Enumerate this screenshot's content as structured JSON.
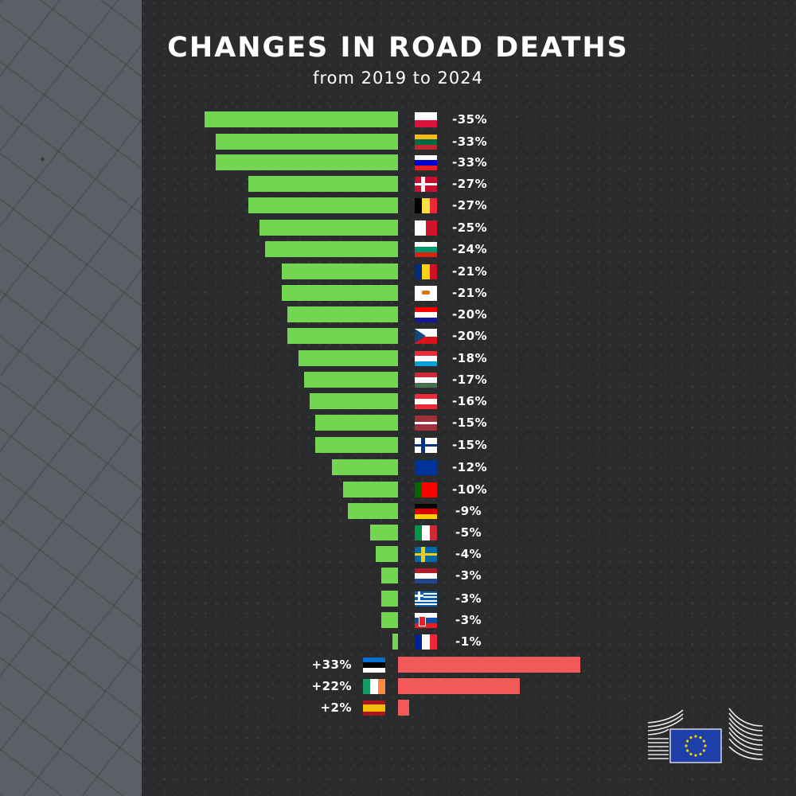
{
  "header": {
    "title": "CHANGES IN ROAD DEATHS",
    "subtitle": "from 2019 to 2024"
  },
  "colors": {
    "decrease": "#73d651",
    "increase": "#f25a5a",
    "background": "#2a2b2d"
  },
  "rows": [
    {
      "country": "Poland",
      "label": "-35%",
      "value": -35
    },
    {
      "country": "Lithuania",
      "label": "-33%",
      "value": -33
    },
    {
      "country": "Slovenia",
      "label": "-33%",
      "value": -33
    },
    {
      "country": "Denmark",
      "label": "-27%",
      "value": -27
    },
    {
      "country": "Belgium",
      "label": "-27%",
      "value": -27
    },
    {
      "country": "Malta",
      "label": "-25%",
      "value": -25
    },
    {
      "country": "Bulgaria",
      "label": "-24%",
      "value": -24
    },
    {
      "country": "Romania",
      "label": "-21%",
      "value": -21
    },
    {
      "country": "Cyprus",
      "label": "-21%",
      "value": -21
    },
    {
      "country": "Croatia",
      "label": "-20%",
      "value": -20
    },
    {
      "country": "Czechia",
      "label": "-20%",
      "value": -20
    },
    {
      "country": "Luxembourg",
      "label": "-18%",
      "value": -18
    },
    {
      "country": "Hungary",
      "label": "-17%",
      "value": -17
    },
    {
      "country": "Austria",
      "label": "-16%",
      "value": -16
    },
    {
      "country": "Latvia",
      "label": "-15%",
      "value": -15
    },
    {
      "country": "Finland",
      "label": "-15%",
      "value": -15
    },
    {
      "country": "EU",
      "label": "-12%",
      "value": -12
    },
    {
      "country": "Portugal",
      "label": "-10%",
      "value": -10
    },
    {
      "country": "Germany",
      "label": "-9%",
      "value": -9
    },
    {
      "country": "Italy",
      "label": "-5%",
      "value": -5
    },
    {
      "country": "Sweden",
      "label": "-4%",
      "value": -4
    },
    {
      "country": "Netherlands",
      "label": "-3%",
      "value": -3
    },
    {
      "country": "Greece",
      "label": "-3%",
      "value": -3
    },
    {
      "country": "Slovakia",
      "label": "-3%",
      "value": -3
    },
    {
      "country": "France",
      "label": "-1%",
      "value": -1
    },
    {
      "country": "Estonia",
      "label": "+33%",
      "value": 33
    },
    {
      "country": "Ireland",
      "label": "+22%",
      "value": 22
    },
    {
      "country": "Spain",
      "label": "+2%",
      "value": 2
    }
  ],
  "chart_data": {
    "type": "bar",
    "orientation": "horizontal",
    "title": "CHANGES IN ROAD DEATHS",
    "subtitle": "from 2019 to 2024",
    "xlabel": "",
    "ylabel": "",
    "categories": [
      "Poland",
      "Lithuania",
      "Slovenia",
      "Denmark",
      "Belgium",
      "Malta",
      "Bulgaria",
      "Romania",
      "Cyprus",
      "Croatia",
      "Czechia",
      "Luxembourg",
      "Hungary",
      "Austria",
      "Latvia",
      "Finland",
      "EU",
      "Portugal",
      "Germany",
      "Italy",
      "Sweden",
      "Netherlands",
      "Greece",
      "Slovakia",
      "France",
      "Estonia",
      "Ireland",
      "Spain"
    ],
    "values": [
      -35,
      -33,
      -33,
      -27,
      -27,
      -25,
      -24,
      -21,
      -21,
      -20,
      -20,
      -18,
      -17,
      -16,
      -15,
      -15,
      -12,
      -10,
      -9,
      -5,
      -4,
      -3,
      -3,
      -3,
      -1,
      33,
      22,
      2
    ],
    "unit": "%",
    "labels_shown_as_flags": true,
    "grid": false,
    "legend": null,
    "colors": {
      "negative": "#73d651",
      "positive": "#f25a5a"
    }
  },
  "logo": {
    "name": "European Commission"
  }
}
